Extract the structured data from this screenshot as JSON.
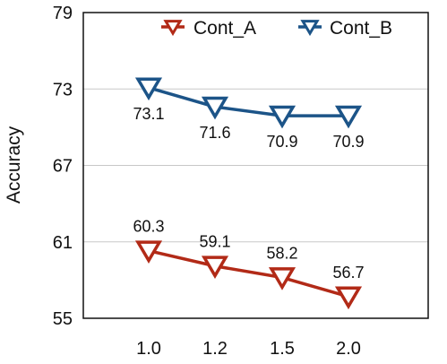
{
  "chart_data": {
    "type": "line",
    "title": "",
    "xlabel": "",
    "ylabel": "Accuracy",
    "categories": [
      "1.0",
      "1.2",
      "1.5",
      "2.0"
    ],
    "ylim": [
      55,
      79
    ],
    "yticks": [
      "55",
      "61",
      "67",
      "73",
      "79"
    ],
    "grid": "horizontal",
    "legend_position": "top-right",
    "series": [
      {
        "name": "Cont_A",
        "color": "#b22a17",
        "marker": "down-triangle",
        "values": [
          60.3,
          59.1,
          58.2,
          56.7
        ],
        "labels": [
          "60.3",
          "59.1",
          "58.2",
          "56.7"
        ]
      },
      {
        "name": "Cont_B",
        "color": "#1c5488",
        "marker": "down-triangle",
        "values": [
          73.1,
          71.6,
          70.9,
          70.9
        ],
        "labels": [
          "73.1",
          "71.6",
          "70.9",
          "70.9"
        ]
      }
    ]
  }
}
